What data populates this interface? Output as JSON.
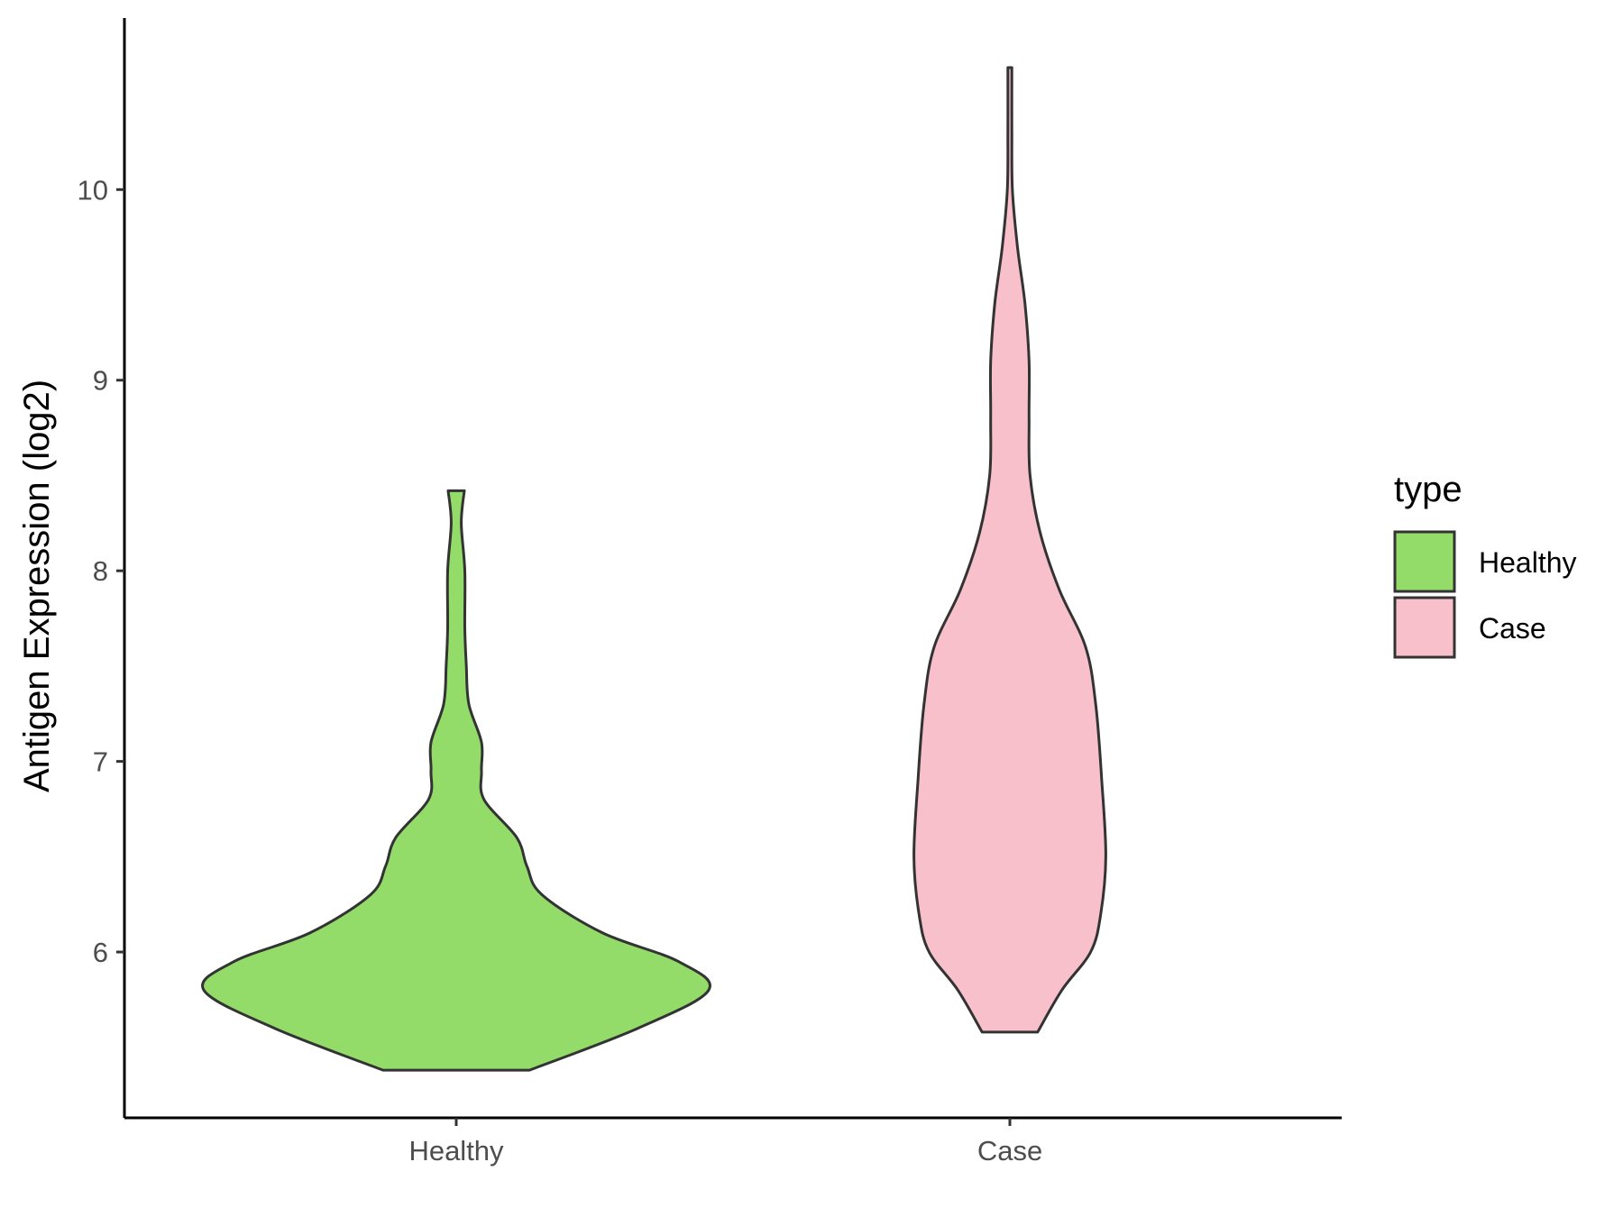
{
  "chart_data": {
    "type": "violin",
    "title": "",
    "xlabel": "",
    "ylabel": "Antigen Expression (log2)",
    "ylim": [
      5.13,
      10.9
    ],
    "yticks": [
      6,
      7,
      8,
      9,
      10
    ],
    "categories": [
      "Healthy",
      "Case"
    ],
    "grid": false,
    "legend": {
      "title": "type",
      "position": "right",
      "entries": [
        {
          "label": "Healthy",
          "color": "#93dc6a"
        },
        {
          "label": "Case",
          "color": "#f7c0cb"
        }
      ]
    },
    "series": [
      {
        "name": "Healthy",
        "color": "#93dc6a",
        "min": 5.38,
        "max": 8.42,
        "density_profile": [
          [
            5.38,
            0.145
          ],
          [
            5.6,
            0.36
          ],
          [
            5.8,
            0.5
          ],
          [
            5.95,
            0.44
          ],
          [
            6.1,
            0.29
          ],
          [
            6.3,
            0.17
          ],
          [
            6.45,
            0.14
          ],
          [
            6.6,
            0.12
          ],
          [
            6.8,
            0.055
          ],
          [
            6.95,
            0.05
          ],
          [
            7.1,
            0.05
          ],
          [
            7.3,
            0.025
          ],
          [
            7.5,
            0.02
          ],
          [
            7.7,
            0.017
          ],
          [
            8.0,
            0.017
          ],
          [
            8.25,
            0.01
          ],
          [
            8.42,
            0.016
          ]
        ]
      },
      {
        "name": "Case",
        "color": "#f7c0cb",
        "min": 5.58,
        "max": 10.64,
        "density_profile": [
          [
            5.58,
            0.055
          ],
          [
            5.8,
            0.103
          ],
          [
            6.0,
            0.16
          ],
          [
            6.2,
            0.18
          ],
          [
            6.5,
            0.19
          ],
          [
            6.9,
            0.182
          ],
          [
            7.3,
            0.17
          ],
          [
            7.6,
            0.15
          ],
          [
            7.9,
            0.098
          ],
          [
            8.2,
            0.06
          ],
          [
            8.5,
            0.04
          ],
          [
            8.8,
            0.038
          ],
          [
            9.1,
            0.038
          ],
          [
            9.4,
            0.03
          ],
          [
            9.7,
            0.015
          ],
          [
            10.0,
            0.005
          ],
          [
            10.3,
            0.004
          ],
          [
            10.64,
            0.004
          ]
        ]
      }
    ],
    "colors": {
      "outline": "#333333",
      "axis": "#000000",
      "ticks": "#333333"
    }
  }
}
